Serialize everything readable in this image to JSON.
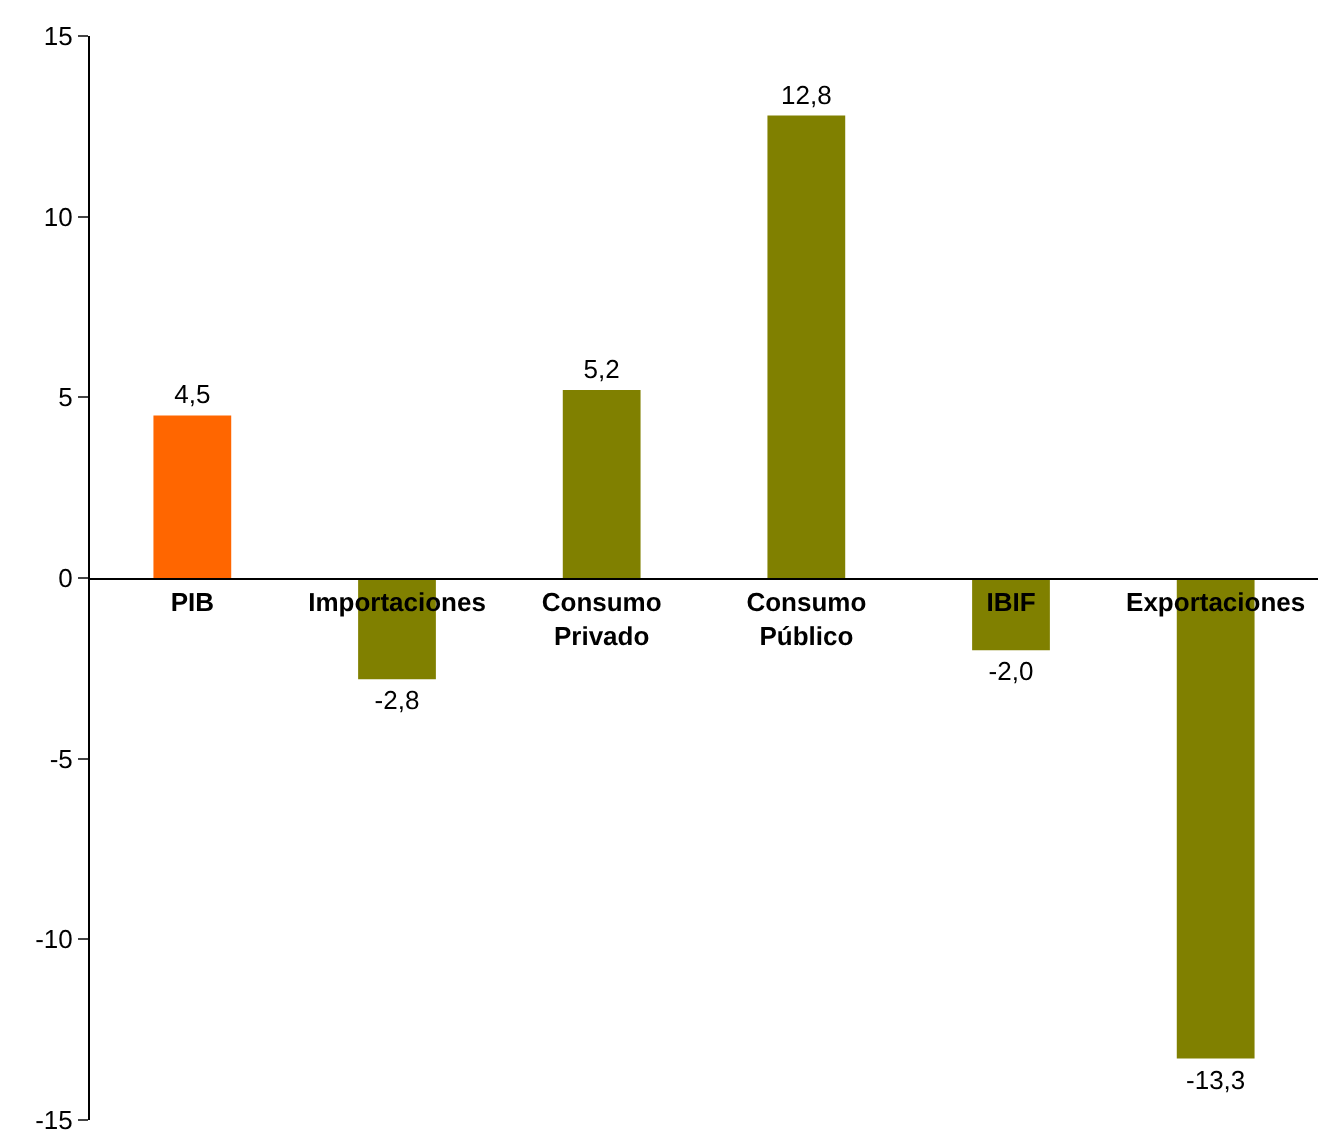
{
  "chart_data": {
    "type": "bar",
    "categories": [
      "PIB",
      "Importaciones",
      "Consumo\nPrivado",
      "Consumo\nPúblico",
      "IBIF",
      "Exportaciones"
    ],
    "values": [
      4.5,
      -2.8,
      5.2,
      12.8,
      -2.0,
      -13.3
    ],
    "colors": [
      "#ff6600",
      "#808000",
      "#808000",
      "#808000",
      "#808000",
      "#808000"
    ],
    "value_labels": [
      "4,5",
      "-2,8",
      "5,2",
      "12,8",
      "-2,0",
      "-13,3"
    ],
    "ylim": [
      -15,
      15
    ],
    "yticks": [
      -15,
      -10,
      -5,
      0,
      5,
      10,
      15
    ],
    "grid": false,
    "legend": false
  }
}
